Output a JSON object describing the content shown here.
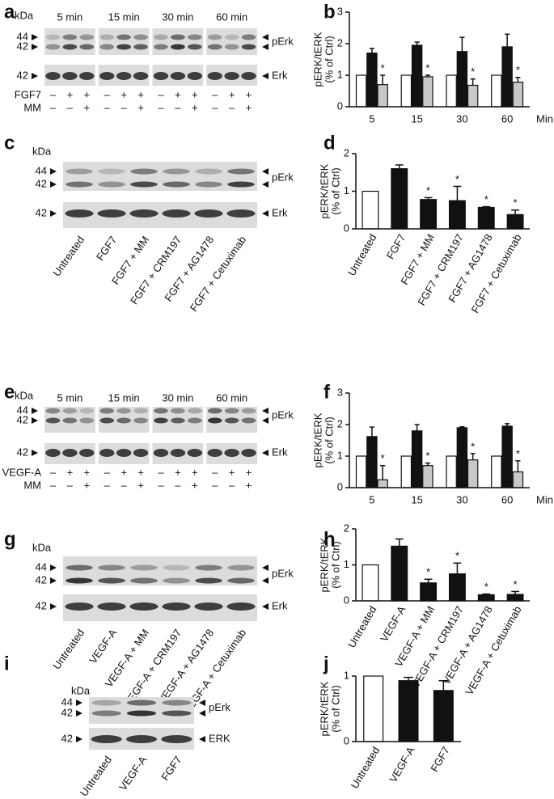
{
  "blots": [
    {
      "panel": "a",
      "kda": "kDa",
      "groups": [
        "5 min",
        "15 min",
        "30 min",
        "60 min"
      ],
      "markers": [
        "44",
        "42"
      ],
      "marker2": "42",
      "bands": [
        "pErk",
        "Erk"
      ],
      "rows": [
        {
          "label": "FGF7",
          "signs": [
            "–",
            "+",
            "+",
            "–",
            "+",
            "+",
            "–",
            "+",
            "+",
            "–",
            "+",
            "+"
          ]
        },
        {
          "label": "MM",
          "signs": [
            "–",
            "–",
            "+",
            "–",
            "–",
            "+",
            "–",
            "–",
            "+",
            "–",
            "–",
            "+"
          ]
        }
      ]
    },
    {
      "panel": "c",
      "kda": "kDa",
      "markers": [
        "44",
        "42"
      ],
      "marker2": "42",
      "bands": [
        "pErk",
        "Erk"
      ],
      "lanes": [
        "Untreated",
        "FGF7",
        "FGF7 + MM",
        "FGF7 + CRM197",
        "FGF7 + AG1478",
        "FGF7 + Cetuximab"
      ]
    },
    {
      "panel": "e",
      "kda": "kDa",
      "groups": [
        "5 min",
        "15 min",
        "30 min",
        "60 min"
      ],
      "markers": [
        "44",
        "42"
      ],
      "marker2": "42",
      "bands": [
        "pErk",
        "Erk"
      ],
      "rows": [
        {
          "label": "VEGF-A",
          "signs": [
            "–",
            "+",
            "+",
            "–",
            "+",
            "+",
            "–",
            "+",
            "+",
            "–",
            "+",
            "+"
          ]
        },
        {
          "label": "MM",
          "signs": [
            "–",
            "–",
            "+",
            "–",
            "–",
            "+",
            "–",
            "–",
            "+",
            "–",
            "–",
            "+"
          ]
        }
      ]
    },
    {
      "panel": "g",
      "kda": "kDa",
      "markers": [
        "44",
        "42"
      ],
      "marker2": "42",
      "bands": [
        "pErk",
        "Erk"
      ],
      "lanes": [
        "Untreated",
        "VEGF-A",
        "VEGF-A + MM",
        "VEGF-A + CRM197",
        "VEGF-A + AG1478",
        "VEGF-A + Cetuximab"
      ]
    },
    {
      "panel": "i",
      "kda": "kDa",
      "markers": [
        "44",
        "42"
      ],
      "marker2": "42",
      "bands": [
        "pErk",
        "ERK"
      ],
      "lanes": [
        "Untreated",
        "VEGF-A",
        "FGF7"
      ]
    }
  ],
  "chart_data": [
    {
      "type": "bar",
      "panel": "b",
      "ylabel": [
        "pERK/tERK",
        "(% of Ctrl)"
      ],
      "xlabel": "Min",
      "categories": [
        "5",
        "15",
        "30",
        "60"
      ],
      "ylim": [
        0,
        3
      ],
      "yticks": [
        0,
        1,
        2,
        3
      ],
      "series": [
        {
          "color": "#ffffff",
          "values": [
            1,
            1,
            1,
            1
          ]
        },
        {
          "color": "#111111",
          "values": [
            1.7,
            1.95,
            1.75,
            1.9
          ],
          "errors": [
            0.15,
            0.1,
            0.45,
            0.4
          ]
        },
        {
          "color": "#c8c8c8",
          "values": [
            0.7,
            0.95,
            0.68,
            0.78
          ],
          "errors": [
            0.3,
            0.05,
            0.2,
            0.15
          ],
          "significance": [
            "*",
            "*",
            "*",
            "*"
          ]
        }
      ]
    },
    {
      "type": "bar",
      "panel": "d",
      "ylabel": [
        "pERK/tERK",
        "(% of Ctrl)"
      ],
      "categories": [
        "Untreated",
        "FGF7",
        "FGF7 + MM",
        "FGF7 + CRM197",
        "FGF7 + AG1478",
        "FGF7 + Cetuximab"
      ],
      "values": [
        1,
        1.6,
        0.78,
        0.75,
        0.57,
        0.38
      ],
      "errors": [
        null,
        0.1,
        0.05,
        0.38,
        0.02,
        0.12
      ],
      "colors": [
        "#ffffff",
        "#111111",
        "#111111",
        "#111111",
        "#111111",
        "#111111"
      ],
      "significance": [
        null,
        null,
        "*",
        "*",
        "*",
        "*"
      ],
      "ylim": [
        0,
        2
      ],
      "yticks": [
        0,
        1,
        2
      ]
    },
    {
      "type": "bar",
      "panel": "f",
      "ylabel": [
        "pERK/tERK",
        "(% of Ctrl)"
      ],
      "xlabel": "Min",
      "categories": [
        "5",
        "15",
        "30",
        "60"
      ],
      "ylim": [
        0,
        3
      ],
      "yticks": [
        0,
        1,
        2,
        3
      ],
      "series": [
        {
          "color": "#ffffff",
          "values": [
            1,
            1,
            1,
            1
          ]
        },
        {
          "color": "#111111",
          "values": [
            1.62,
            1.8,
            1.9,
            1.95
          ],
          "errors": [
            0.3,
            0.2,
            0.03,
            0.08
          ]
        },
        {
          "color": "#c8c8c8",
          "values": [
            0.25,
            0.7,
            0.88,
            0.5
          ],
          "errors": [
            0.45,
            0.08,
            0.2,
            0.35
          ],
          "significance": [
            "*",
            "*",
            "*",
            "*"
          ]
        }
      ]
    },
    {
      "type": "bar",
      "panel": "h",
      "ylabel": [
        "pERK/tERK",
        "(% of Ctrl)"
      ],
      "categories": [
        "Untreated",
        "VEGF-A",
        "VEGF-A + MM",
        "VEGF-A + CRM197",
        "VEGF-A + AG1478",
        "VEGF-A + Cetuximab"
      ],
      "values": [
        1,
        1.52,
        0.5,
        0.75,
        0.17,
        0.18
      ],
      "errors": [
        null,
        0.2,
        0.1,
        0.3,
        0.02,
        0.08
      ],
      "colors": [
        "#ffffff",
        "#111111",
        "#111111",
        "#111111",
        "#111111",
        "#111111"
      ],
      "significance": [
        null,
        null,
        "*",
        "*",
        "*",
        "*"
      ],
      "ylim": [
        0,
        2
      ],
      "yticks": [
        0,
        1,
        2
      ]
    },
    {
      "type": "bar",
      "panel": "j",
      "ylabel": [
        "pERK/tERK",
        "(% of Ctrl)"
      ],
      "categories": [
        "Untreated",
        "VEGF-A",
        "FGF7"
      ],
      "values": [
        1,
        0.93,
        0.78
      ],
      "errors": [
        null,
        0.05,
        0.15
      ],
      "colors": [
        "#ffffff",
        "#111111",
        "#111111"
      ],
      "ylim": [
        0,
        1
      ],
      "yticks": [
        0,
        1
      ]
    }
  ]
}
